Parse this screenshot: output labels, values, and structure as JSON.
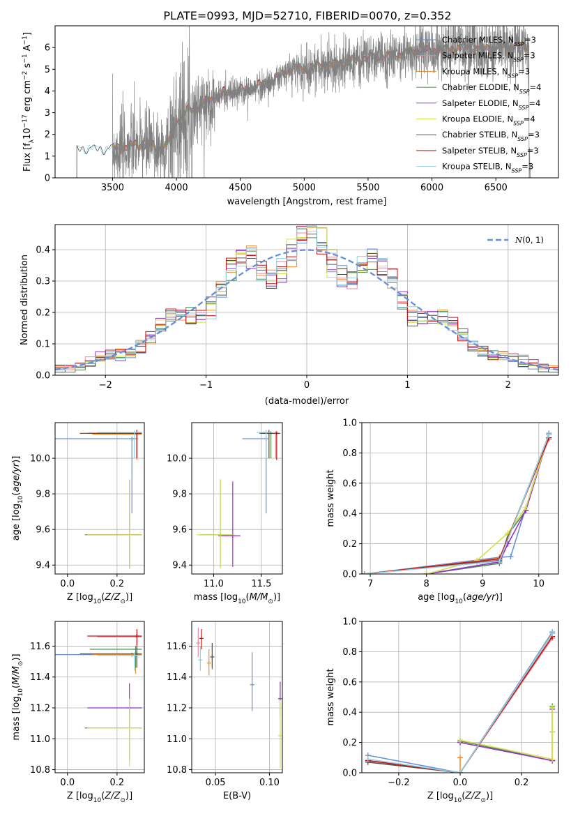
{
  "figure": {
    "title": "PLATE=0993, MJD=52710, FIBERID=0070, z=0.352"
  },
  "series": [
    {
      "name": "Chabrier MILES, N_SSP=3",
      "color": "#6a8fd9"
    },
    {
      "name": "Salpeter MILES, N_SSP=3",
      "color": "#e88aa0"
    },
    {
      "name": "Kroupa MILES, N_SSP=3",
      "color": "#f28e2b"
    },
    {
      "name": "Chabrier ELODIE, N_SSP=4",
      "color": "#4e8a52"
    },
    {
      "name": "Salpeter ELODIE, N_SSP=4",
      "color": "#9932cc"
    },
    {
      "name": "Kroupa ELODIE, N_SSP=4",
      "color": "#d4e04a"
    },
    {
      "name": "Chabrier STELIB, N_SSP=3",
      "color": "#555555"
    },
    {
      "name": "Salpeter STELIB, N_SSP=3",
      "color": "#cc1111"
    },
    {
      "name": "Kroupa STELIB, N_SSP=3",
      "color": "#8fd4e0"
    }
  ],
  "chart_data": [
    {
      "id": "spectrum",
      "type": "line",
      "xlabel": "wavelength [Angstrom, rest frame]",
      "ylabel": "Flux [f_λ 10^-17 erg cm^-2 s^-1 A^-1]",
      "xlim": [
        3050,
        6990
      ],
      "ylim": [
        0,
        7
      ],
      "xticks": [
        3500,
        4000,
        4500,
        5000,
        5500,
        6000,
        6500
      ],
      "yticks": [
        0,
        1,
        2,
        3,
        4,
        5,
        6
      ],
      "legend": "upper right",
      "data_color": "#808080",
      "continuum": [
        [
          3220,
          1.25
        ],
        [
          3300,
          1.3
        ],
        [
          3400,
          1.25
        ],
        [
          3500,
          1.3
        ],
        [
          3600,
          1.4
        ],
        [
          3700,
          1.5
        ],
        [
          3800,
          1.45
        ],
        [
          3900,
          1.3
        ],
        [
          3950,
          1.7
        ],
        [
          4000,
          2.6
        ],
        [
          4100,
          3.1
        ],
        [
          4200,
          3.3
        ],
        [
          4300,
          3.7
        ],
        [
          4400,
          3.9
        ],
        [
          4500,
          3.95
        ],
        [
          4600,
          4.1
        ],
        [
          4700,
          4.3
        ],
        [
          4800,
          4.6
        ],
        [
          4900,
          5.0
        ],
        [
          5000,
          4.95
        ],
        [
          5100,
          5.1
        ],
        [
          5200,
          5.15
        ],
        [
          5300,
          5.25
        ],
        [
          5400,
          5.35
        ],
        [
          5500,
          5.5
        ],
        [
          5600,
          5.55
        ],
        [
          5700,
          5.6
        ],
        [
          5800,
          5.7
        ],
        [
          5900,
          5.85
        ],
        [
          6000,
          5.8
        ],
        [
          6100,
          5.85
        ],
        [
          6200,
          5.95
        ],
        [
          6300,
          6.0
        ],
        [
          6400,
          5.9
        ],
        [
          6500,
          5.95
        ],
        [
          6600,
          6.05
        ],
        [
          6700,
          6.0
        ],
        [
          6760,
          6.0
        ]
      ]
    },
    {
      "id": "residuals",
      "type": "line",
      "xlabel": "(data-model)/error",
      "ylabel": "Normed distribution",
      "xlim": [
        -2.5,
        2.5
      ],
      "ylim": [
        0,
        0.48
      ],
      "xticks": [
        -2,
        -1,
        0,
        1,
        2
      ],
      "yticks": [
        0.0,
        0.1,
        0.2,
        0.3,
        0.4
      ],
      "legend_label": "N(0,1)",
      "legend": "upper right"
    },
    {
      "id": "age_vs_Z",
      "type": "scatter",
      "xlabel": "Z [log10(Z/Z☉)]",
      "ylabel": "age  [log10(age/yr)]",
      "xlim": [
        -0.05,
        0.31
      ],
      "ylim": [
        9.35,
        10.2
      ],
      "xticks": [
        0.0,
        0.2
      ],
      "yticks": [
        9.4,
        9.6,
        9.8,
        10.0
      ],
      "points": [
        {
          "s": 0,
          "x": 0.26,
          "y": 10.11,
          "xe": [
            -0.05,
            0.285
          ],
          "ye": [
            9.69,
            10.11
          ]
        },
        {
          "s": 1,
          "x": 0.28,
          "y": 10.14,
          "xe": [
            0.12,
            0.3
          ],
          "ye": [
            10.0,
            10.15
          ]
        },
        {
          "s": 2,
          "x": 0.28,
          "y": 10.135,
          "xe": [
            0.1,
            0.3
          ],
          "ye": [
            9.99,
            10.14
          ]
        },
        {
          "s": 3,
          "x": 0.28,
          "y": 10.14,
          "xe": [
            0.09,
            0.3
          ],
          "ye": [
            10.0,
            10.16
          ]
        },
        {
          "s": 6,
          "x": 0.28,
          "y": 10.14,
          "xe": [
            0.08,
            0.3
          ],
          "ye": [
            10.0,
            10.16
          ]
        },
        {
          "s": 7,
          "x": 0.28,
          "y": 10.14,
          "xe": [
            0.05,
            0.3
          ],
          "ye": [
            10.0,
            10.15
          ]
        },
        {
          "s": 8,
          "x": 0.27,
          "y": 10.145,
          "xe": [
            0.12,
            0.3
          ],
          "ye": [
            10.0,
            10.15
          ]
        },
        {
          "s": 3,
          "x": 0.25,
          "y": 9.57,
          "xe": [
            0.07,
            0.3
          ],
          "ye": [
            9.38,
            9.88
          ]
        },
        {
          "s": 4,
          "x": 0.25,
          "y": 9.57,
          "xe": [
            0.08,
            0.3
          ],
          "ye": [
            9.39,
            9.87
          ]
        },
        {
          "s": 5,
          "x": 0.25,
          "y": 9.57,
          "xe": [
            0.08,
            0.3
          ],
          "ye": [
            9.38,
            9.88
          ]
        }
      ]
    },
    {
      "id": "age_vs_mass",
      "type": "scatter",
      "xlabel": "mass [log10(M/M☉)]",
      "ylabel": "",
      "xlim": [
        10.77,
        11.72
      ],
      "ylim": [
        9.35,
        10.2
      ],
      "xticks": [
        11.0,
        11.5
      ],
      "yticks": [
        9.4,
        9.6,
        9.8,
        10.0
      ],
      "points": [
        {
          "s": 0,
          "x": 11.55,
          "y": 10.11,
          "xe": [
            11.3,
            11.55
          ],
          "ye": [
            9.69,
            10.11
          ]
        },
        {
          "s": 1,
          "x": 11.65,
          "y": 10.14,
          "xe": [
            11.5,
            11.68
          ],
          "ye": [
            10.0,
            10.15
          ]
        },
        {
          "s": 2,
          "x": 11.58,
          "y": 10.14,
          "xe": [
            11.48,
            11.62
          ],
          "ye": [
            10.0,
            10.15
          ]
        },
        {
          "s": 3,
          "x": 11.6,
          "y": 10.14,
          "xe": [
            11.5,
            11.64
          ],
          "ye": [
            10.0,
            10.15
          ]
        },
        {
          "s": 6,
          "x": 11.58,
          "y": 10.14,
          "xe": [
            11.48,
            11.62
          ],
          "ye": [
            10.0,
            10.16
          ]
        },
        {
          "s": 7,
          "x": 11.66,
          "y": 10.14,
          "xe": [
            11.52,
            11.7
          ],
          "ye": [
            9.99,
            10.15
          ]
        },
        {
          "s": 8,
          "x": 11.55,
          "y": 10.145,
          "xe": [
            11.45,
            11.6
          ],
          "ye": [
            10.0,
            10.15
          ]
        },
        {
          "s": 3,
          "x": 11.07,
          "y": 9.57,
          "xe": [
            10.85,
            11.2
          ],
          "ye": [
            9.39,
            9.88
          ]
        },
        {
          "s": 4,
          "x": 11.2,
          "y": 9.565,
          "xe": [
            11.05,
            11.28
          ],
          "ye": [
            9.39,
            9.87
          ]
        },
        {
          "s": 5,
          "x": 11.07,
          "y": 9.57,
          "xe": [
            10.82,
            11.22
          ],
          "ye": [
            9.38,
            9.88
          ]
        }
      ]
    },
    {
      "id": "massweight_vs_age",
      "type": "line",
      "xlabel": "age  [log10(age/yr)]",
      "ylabel": "mass weight",
      "xlim": [
        6.85,
        10.35
      ],
      "ylim": [
        0,
        1
      ],
      "xticks": [
        7,
        8,
        9,
        10
      ],
      "yticks": [
        0.0,
        0.2,
        0.4,
        0.6,
        0.8,
        1.0
      ],
      "series": [
        {
          "s": 0,
          "x": [
            6.9,
            9.3,
            9.5,
            10.18
          ],
          "y": [
            0.0,
            0.11,
            0.115,
            0.93
          ]
        },
        {
          "s": 1,
          "x": [
            6.9,
            8.9,
            9.3,
            10.18
          ],
          "y": [
            0.0,
            0.08,
            0.1,
            0.89
          ]
        },
        {
          "s": 2,
          "x": [
            6.9,
            8.9,
            9.3,
            10.18
          ],
          "y": [
            0.0,
            0.085,
            0.105,
            0.9
          ]
        },
        {
          "s": 3,
          "x": [
            8.0,
            9.3,
            9.45,
            9.77,
            10.18
          ],
          "y": [
            0.0,
            0.07,
            0.26,
            0.42,
            0.92
          ]
        },
        {
          "s": 4,
          "x": [
            8.0,
            9.3,
            9.45,
            9.77,
            10.18
          ],
          "y": [
            0.0,
            0.08,
            0.2,
            0.42,
            0.92
          ]
        },
        {
          "s": 5,
          "x": [
            8.0,
            8.9,
            9.45,
            9.77,
            10.18
          ],
          "y": [
            0.0,
            0.09,
            0.27,
            0.44,
            0.92
          ]
        },
        {
          "s": 6,
          "x": [
            6.9,
            9.3,
            10.18
          ],
          "y": [
            0.0,
            0.09,
            0.92
          ]
        },
        {
          "s": 7,
          "x": [
            6.9,
            9.3,
            10.18
          ],
          "y": [
            0.0,
            0.1,
            0.9
          ]
        },
        {
          "s": 8,
          "x": [
            6.9,
            9.3,
            10.18
          ],
          "y": [
            0.0,
            0.085,
            0.92
          ]
        }
      ]
    },
    {
      "id": "mass_vs_Z",
      "type": "scatter",
      "xlabel": "Z [log10(Z/Z☉)]",
      "ylabel": "mass [log10(M/M☉)]",
      "xlim": [
        -0.05,
        0.31
      ],
      "ylim": [
        10.78,
        11.76
      ],
      "xticks": [
        0.0,
        0.2
      ],
      "yticks": [
        10.8,
        11.0,
        11.2,
        11.4,
        11.6
      ],
      "points": [
        {
          "s": 0,
          "x": 0.26,
          "y": 11.545,
          "xe": [
            -0.05,
            0.285
          ],
          "ye": [
            11.54,
            11.55
          ]
        },
        {
          "s": 1,
          "x": 0.28,
          "y": 11.66,
          "xe": [
            0.12,
            0.3
          ],
          "ye": [
            11.6,
            11.7
          ]
        },
        {
          "s": 2,
          "x": 0.275,
          "y": 11.545,
          "xe": [
            0.1,
            0.3
          ],
          "ye": [
            11.42,
            11.56
          ]
        },
        {
          "s": 3,
          "x": 0.275,
          "y": 11.58,
          "xe": [
            0.09,
            0.3
          ],
          "ye": [
            11.46,
            11.6
          ]
        },
        {
          "s": 6,
          "x": 0.28,
          "y": 11.55,
          "xe": [
            0.05,
            0.3
          ],
          "ye": [
            11.46,
            11.6
          ]
        },
        {
          "s": 7,
          "x": 0.28,
          "y": 11.665,
          "xe": [
            0.08,
            0.3
          ],
          "ye": [
            11.6,
            11.71
          ]
        },
        {
          "s": 8,
          "x": 0.27,
          "y": 11.54,
          "xe": [
            0.12,
            0.3
          ],
          "ye": [
            11.44,
            11.56
          ]
        },
        {
          "s": 4,
          "x": 0.25,
          "y": 11.2,
          "xe": [
            0.08,
            0.3
          ],
          "ye": [
            11.14,
            11.36
          ]
        },
        {
          "s": 3,
          "x": 0.25,
          "y": 11.07,
          "xe": [
            0.07,
            0.3
          ],
          "ye": [
            10.86,
            11.2
          ]
        },
        {
          "s": 5,
          "x": 0.25,
          "y": 11.07,
          "xe": [
            0.08,
            0.3
          ],
          "ye": [
            10.82,
            11.26
          ]
        }
      ]
    },
    {
      "id": "mass_vs_EBV",
      "type": "scatter",
      "xlabel": "E(B-V)",
      "ylabel": "",
      "xlim": [
        0.028,
        0.112
      ],
      "ylim": [
        10.78,
        11.76
      ],
      "xticks": [
        0.05,
        0.1
      ],
      "yticks": [
        10.8,
        11.0,
        11.2,
        11.4,
        11.6
      ],
      "points": [
        {
          "s": 0,
          "x": 0.084,
          "y": 11.35,
          "xe": [
            0.084,
            0.084
          ],
          "ye": [
            11.18,
            11.56
          ]
        },
        {
          "s": 1,
          "x": 0.034,
          "y": 11.62,
          "xe": [
            0.034,
            0.034
          ],
          "ye": [
            11.53,
            11.72
          ]
        },
        {
          "s": 2,
          "x": 0.044,
          "y": 11.49,
          "xe": [
            0.044,
            0.044
          ],
          "ye": [
            11.41,
            11.58
          ]
        },
        {
          "s": 3,
          "x": 0.047,
          "y": 11.53,
          "xe": [
            0.047,
            0.047
          ],
          "ye": [
            11.45,
            11.62
          ]
        },
        {
          "s": 4,
          "x": 0.11,
          "y": 11.26,
          "xe": [
            0.11,
            0.11
          ],
          "ye": [
            11.14,
            11.37
          ]
        },
        {
          "s": 5,
          "x": 0.11,
          "y": 11.02,
          "xe": [
            0.11,
            0.11
          ],
          "ye": [
            10.81,
            11.25
          ]
        },
        {
          "s": 6,
          "x": 0.047,
          "y": 11.53,
          "xe": [
            0.047,
            0.047
          ],
          "ye": [
            11.46,
            11.62
          ]
        },
        {
          "s": 7,
          "x": 0.037,
          "y": 11.65,
          "xe": [
            0.037,
            0.037
          ],
          "ye": [
            11.58,
            11.71
          ]
        },
        {
          "s": 8,
          "x": 0.036,
          "y": 11.51,
          "xe": [
            0.036,
            0.036
          ],
          "ye": [
            11.44,
            11.6
          ]
        }
      ]
    },
    {
      "id": "massweight_vs_Z",
      "type": "line",
      "xlabel": "Z [log10(Z/Z☉)]",
      "ylabel": "mass weight",
      "xlim": [
        -0.32,
        0.32
      ],
      "ylim": [
        0,
        1
      ],
      "xticks": [
        -0.2,
        0.0,
        0.2
      ],
      "yticks": [
        0.0,
        0.2,
        0.4,
        0.6,
        0.8,
        1.0
      ],
      "series": [
        {
          "s": 0,
          "x": [
            -0.3,
            0.0,
            0.3
          ],
          "y": [
            0.115,
            0.0,
            0.93
          ]
        },
        {
          "s": 1,
          "x": [
            -0.3,
            0.0,
            0.3
          ],
          "y": [
            0.08,
            0.0,
            0.89
          ]
        },
        {
          "s": 2,
          "x": [
            0.0,
            0.0,
            0.3
          ],
          "y": [
            0.1,
            0.0,
            0.9
          ]
        },
        {
          "s": 3,
          "x": [
            0.0,
            0.3,
            0.3,
            0.3
          ],
          "y": [
            0.21,
            0.08,
            0.27,
            0.44
          ]
        },
        {
          "s": 4,
          "x": [
            0.0,
            0.3,
            0.3
          ],
          "y": [
            0.2,
            0.08,
            0.42
          ]
        },
        {
          "s": 5,
          "x": [
            0.0,
            0.3,
            0.3,
            0.3
          ],
          "y": [
            0.215,
            0.09,
            0.27,
            0.43
          ]
        },
        {
          "s": 6,
          "x": [
            -0.3,
            0.0,
            0.3
          ],
          "y": [
            0.07,
            0.0,
            0.92
          ]
        },
        {
          "s": 7,
          "x": [
            -0.3,
            0.0,
            0.3
          ],
          "y": [
            0.08,
            0.0,
            0.9
          ]
        },
        {
          "s": 8,
          "x": [
            -0.3,
            0.0,
            0.3
          ],
          "y": [
            0.09,
            0.0,
            0.92
          ]
        }
      ]
    }
  ]
}
